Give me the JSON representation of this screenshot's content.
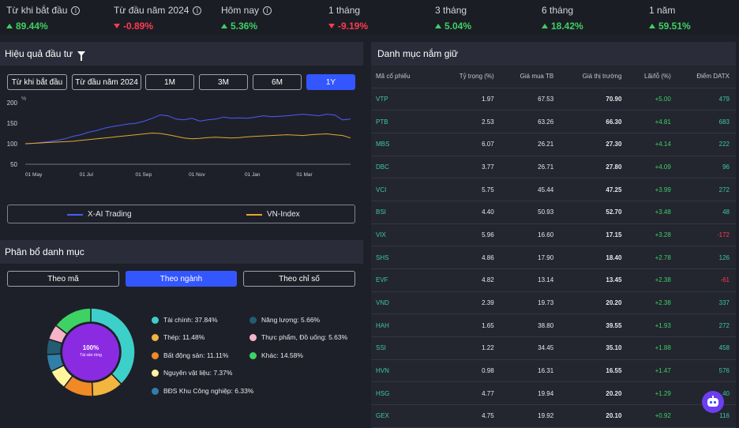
{
  "performance": [
    {
      "label": "Từ khi bắt đầu",
      "value": "89.44%",
      "dir": "up",
      "info": true
    },
    {
      "label": "Từ đầu năm 2024",
      "value": "-0.89%",
      "dir": "down",
      "info": true
    },
    {
      "label": "Hôm nay",
      "value": "5.36%",
      "dir": "up",
      "info": true
    },
    {
      "label": "1 tháng",
      "value": "-9.19%",
      "dir": "down",
      "info": false
    },
    {
      "label": "3 tháng",
      "value": "5.04%",
      "dir": "up",
      "info": false
    },
    {
      "label": "6 tháng",
      "value": "18.42%",
      "dir": "up",
      "info": false
    },
    {
      "label": "1 năm",
      "value": "59.51%",
      "dir": "up",
      "info": false
    }
  ],
  "invest": {
    "title": "Hiệu quả đầu tư",
    "ranges": [
      "Từ khi bắt đầu",
      "Từ đầu năm 2024",
      "1M",
      "3M",
      "6M",
      "1Y"
    ],
    "active_range": "1Y"
  },
  "chart_data": {
    "type": "line",
    "ylabel": "%",
    "ylim": [
      50,
      200
    ],
    "yticks": [
      50,
      100,
      150,
      200
    ],
    "xticks": [
      "01 May",
      "01 Jul",
      "01 Sep",
      "01 Nov",
      "01 Jan",
      "01 Mar"
    ],
    "series": [
      {
        "name": "X-AI Trading",
        "color": "#4a5cff",
        "values": [
          100,
          101,
          103,
          105,
          108,
          112,
          118,
          122,
          128,
          132,
          138,
          142,
          145,
          148,
          150,
          155,
          162,
          170,
          168,
          160,
          158,
          162,
          155,
          158,
          160,
          165,
          162,
          163,
          162,
          165,
          168,
          166,
          167,
          168,
          170,
          172,
          170,
          168,
          172,
          170,
          158,
          160
        ]
      },
      {
        "name": "VN-Index",
        "color": "#e3a92b",
        "values": [
          100,
          101,
          102,
          103,
          104,
          105,
          106,
          108,
          110,
          112,
          114,
          116,
          118,
          120,
          122,
          124,
          126,
          125,
          122,
          118,
          114,
          112,
          113,
          115,
          116,
          115,
          114,
          115,
          117,
          118,
          119,
          120,
          121,
          122,
          121,
          120,
          122,
          123,
          124,
          122,
          120,
          114
        ]
      }
    ]
  },
  "allocation": {
    "title": "Phân bổ danh mục",
    "tabs": [
      "Theo mã",
      "Theo ngành",
      "Theo chỉ số"
    ],
    "active_tab": "Theo ngành",
    "center_value": "100%",
    "center_label": "Tài sản ròng",
    "items": [
      {
        "label": "Tài chính: 37.84%",
        "pct": 37.84,
        "color": "#3dcfca"
      },
      {
        "label": "Thép: 11.48%",
        "pct": 11.48,
        "color": "#f2b53d"
      },
      {
        "label": "Bất động sản: 11.11%",
        "pct": 11.11,
        "color": "#f08a24"
      },
      {
        "label": "Nguyên vật liệu: 7.37%",
        "pct": 7.37,
        "color": "#fff59d"
      },
      {
        "label": "BĐS Khu Công nghiệp: 6.33%",
        "pct": 6.33,
        "color": "#2f7fa8"
      },
      {
        "label": "Năng lượng: 5.66%",
        "pct": 5.66,
        "color": "#245c74"
      },
      {
        "label": "Thực phẩm, Đồ uống: 5.63%",
        "pct": 5.63,
        "color": "#f7b3c8"
      },
      {
        "label": "Khác: 14.58%",
        "pct": 14.58,
        "color": "#3ed163"
      }
    ]
  },
  "holdings": {
    "title": "Danh mục nắm giữ",
    "columns": [
      "Mã cổ phiếu",
      "Tỷ trọng (%)",
      "Giá mua TB",
      "Giá thị trường",
      "Lãi/lỗ (%)",
      "Điểm DATX"
    ],
    "rows": [
      [
        "VTP",
        "1.97",
        "67.53",
        "70.90",
        "+5.00",
        "479"
      ],
      [
        "PTB",
        "2.53",
        "63.26",
        "66.30",
        "+4.81",
        "683"
      ],
      [
        "MBS",
        "6.07",
        "26.21",
        "27.30",
        "+4.14",
        "222"
      ],
      [
        "DBC",
        "3.77",
        "26.71",
        "27.80",
        "+4.09",
        "96"
      ],
      [
        "VCI",
        "5.75",
        "45.44",
        "47.25",
        "+3.99",
        "272"
      ],
      [
        "BSI",
        "4.40",
        "50.93",
        "52.70",
        "+3.48",
        "48"
      ],
      [
        "VIX",
        "5.96",
        "16.60",
        "17.15",
        "+3.28",
        "-172"
      ],
      [
        "SHS",
        "4.86",
        "17.90",
        "18.40",
        "+2.78",
        "126"
      ],
      [
        "EVF",
        "4.82",
        "13.14",
        "13.45",
        "+2.38",
        "-61"
      ],
      [
        "VND",
        "2.39",
        "19.73",
        "20.20",
        "+2.38",
        "337"
      ],
      [
        "HAH",
        "1.65",
        "38.80",
        "39.55",
        "+1.93",
        "272"
      ],
      [
        "SSI",
        "1.22",
        "34.45",
        "35.10",
        "+1.88",
        "458"
      ],
      [
        "HVN",
        "0.98",
        "16.31",
        "16.55",
        "+1.47",
        "576"
      ],
      [
        "HSG",
        "4.77",
        "19.94",
        "20.20",
        "+1.29",
        "40"
      ],
      [
        "GEX",
        "4.75",
        "19.92",
        "20.10",
        "+0.92",
        "116"
      ]
    ]
  },
  "colors": {
    "accent": "#3456ff",
    "up": "#3ed163",
    "down": "#ff3b4f",
    "code": "#3ec8a8",
    "bot": "#6b3ef0"
  }
}
